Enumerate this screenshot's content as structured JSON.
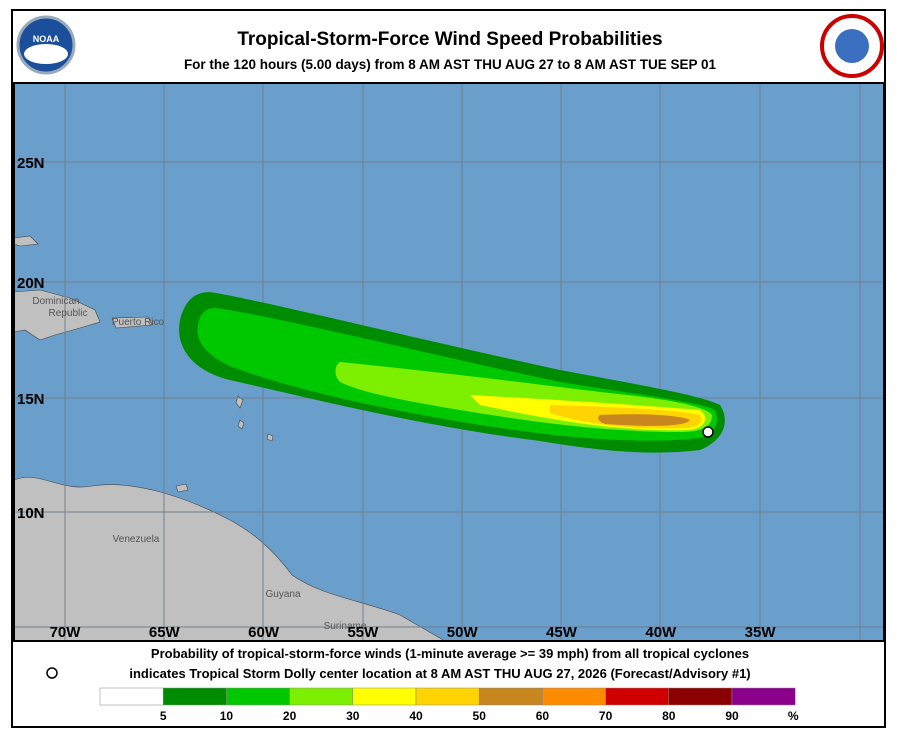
{
  "header": {
    "title": "Tropical-Storm-Force Wind Speed Probabilities",
    "subtitle": "For the 120 hours (5.00 days) from 8 AM AST THU AUG 27 to 8 AM AST TUE SEP 01"
  },
  "map": {
    "lat_labels": [
      "25N",
      "20N",
      "15N",
      "10N"
    ],
    "lon_labels": [
      "70W",
      "65W",
      "60W",
      "55W",
      "50W",
      "45W",
      "40W",
      "35W"
    ],
    "places": [
      "Dominican",
      "Republic",
      "Puerto Rico",
      "Venezuela",
      "Guyana",
      "Suriname"
    ]
  },
  "footer": {
    "line1": "Probability of tropical-storm-force winds (1-minute average >= 39 mph) from all tropical cyclones",
    "line2": "indicates Tropical Storm Dolly center location at 8 AM AST THU AUG 27, 2026 (Forecast/Advisory #1)"
  },
  "legend": {
    "colors": [
      "#ffffff",
      "#008c00",
      "#00c800",
      "#7cf000",
      "#ffff00",
      "#ffd400",
      "#c8861e",
      "#ff8c00",
      "#d00000",
      "#8b0000",
      "#8b008b"
    ],
    "labels": [
      "5",
      "10",
      "20",
      "30",
      "40",
      "50",
      "60",
      "70",
      "80",
      "90"
    ],
    "unit": "%"
  }
}
